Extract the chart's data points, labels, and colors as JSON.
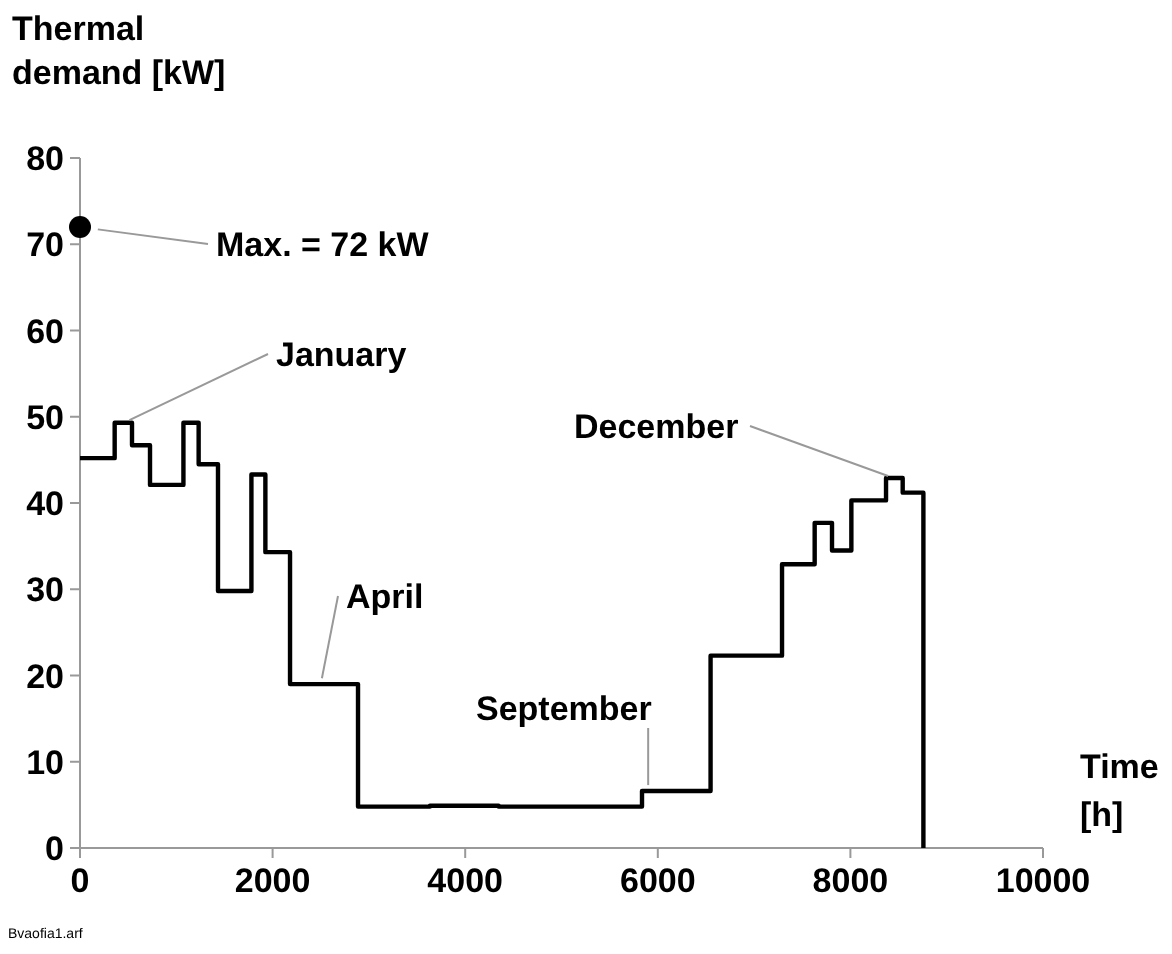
{
  "chart_data": {
    "type": "step",
    "ylabel": "Thermal demand [kW]",
    "xlabel": "Time [h]",
    "xlim": [
      0,
      10000
    ],
    "xticks": [
      0,
      2000,
      4000,
      6000,
      8000,
      10000
    ],
    "ylim": [
      0,
      80
    ],
    "yticks": [
      0,
      10,
      20,
      30,
      40,
      50,
      60,
      70,
      80
    ],
    "grid": false,
    "series": [
      {
        "color": "#000000",
        "x": [
          0,
          360,
          540,
          727,
          1074,
          1232,
          1433,
          1780,
          1925,
          2181,
          2887,
          3634,
          4347,
          5836,
          6548,
          7290,
          7629,
          7809,
          8010,
          8370,
          8543,
          8758
        ],
        "values": [
          45.2,
          49.3,
          46.7,
          42.1,
          49.3,
          44.5,
          29.8,
          43.3,
          34.3,
          19.0,
          4.8,
          4.9,
          4.8,
          6.6,
          22.3,
          32.9,
          37.7,
          34.5,
          40.3,
          42.9,
          41.2,
          0
        ]
      },
      {
        "type": "scatter",
        "color": "#000000",
        "marker": "circle",
        "x": [
          0
        ],
        "values": [
          72
        ]
      }
    ],
    "annotations": [
      {
        "text": "Max. = 72 kW",
        "x": 0,
        "y": 72
      },
      {
        "text": "January",
        "x": 457,
        "y": 49.3
      },
      {
        "text": "April",
        "x": 2500,
        "y": 19.0
      },
      {
        "text": "September",
        "x": 5900,
        "y": 6.6
      },
      {
        "text": "December",
        "x": 8450,
        "y": 42.9
      },
      "Bvaofia1.arf"
    ]
  }
}
